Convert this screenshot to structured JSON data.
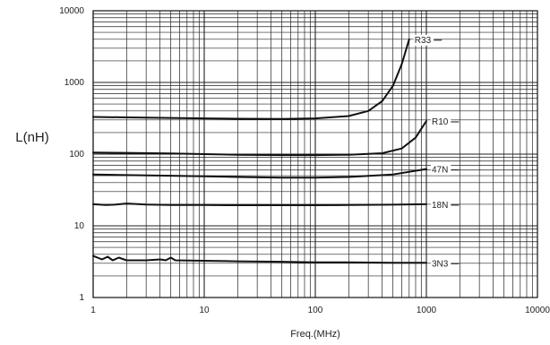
{
  "chart_data": {
    "type": "line",
    "title": "",
    "xlabel": "Freq.(MHz)",
    "ylabel": "L(nH)",
    "xscale": "log",
    "yscale": "log",
    "xlim": [
      1,
      10000
    ],
    "ylim": [
      1,
      10000
    ],
    "grid": true,
    "x_ticks": [
      "1",
      "10",
      "100",
      "1000",
      "10000"
    ],
    "y_ticks": [
      "1",
      "10",
      "100",
      "1000",
      "10000"
    ],
    "series": [
      {
        "name": "R33",
        "x": [
          1,
          2,
          5,
          10,
          20,
          50,
          100,
          200,
          300,
          400,
          500,
          600,
          700
        ],
        "y": [
          330,
          325,
          320,
          315,
          312,
          310,
          315,
          340,
          400,
          550,
          900,
          1800,
          4000
        ]
      },
      {
        "name": "R10",
        "x": [
          1,
          2,
          5,
          10,
          20,
          50,
          100,
          200,
          400,
          600,
          800,
          1000
        ],
        "y": [
          105,
          104,
          102,
          100,
          98,
          97,
          97,
          98,
          103,
          120,
          170,
          290
        ]
      },
      {
        "name": "47N",
        "x": [
          1,
          2,
          5,
          10,
          20,
          50,
          100,
          200,
          500,
          1000
        ],
        "y": [
          52,
          51,
          50,
          49,
          48,
          47,
          47,
          48,
          52,
          62
        ]
      },
      {
        "name": "18N",
        "x": [
          1,
          1.3,
          1.6,
          2,
          3,
          5,
          10,
          20,
          50,
          100,
          200,
          500,
          1000
        ],
        "y": [
          20,
          19.5,
          19.8,
          20.5,
          19.8,
          19.5,
          19.5,
          19.4,
          19.4,
          19.4,
          19.5,
          19.7,
          20
        ]
      },
      {
        "name": "3N3",
        "x": [
          1,
          1.2,
          1.35,
          1.5,
          1.7,
          2,
          3,
          4,
          4.5,
          5,
          5.5,
          10,
          20,
          50,
          100,
          200,
          500,
          1000
        ],
        "y": [
          3.8,
          3.4,
          3.7,
          3.3,
          3.6,
          3.3,
          3.3,
          3.4,
          3.3,
          3.6,
          3.3,
          3.25,
          3.2,
          3.15,
          3.1,
          3.1,
          3.05,
          3.05
        ]
      }
    ]
  }
}
